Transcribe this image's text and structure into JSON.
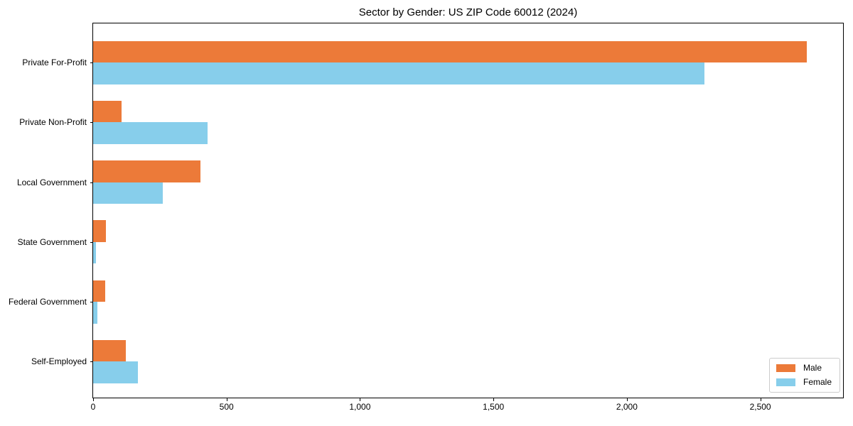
{
  "figure": {
    "background": "#ffffff"
  },
  "chart_data": {
    "type": "bar",
    "orientation": "horizontal",
    "title": "Sector by Gender: US ZIP Code 60012 (2024)",
    "categories": [
      "Private For-Profit",
      "Private Non-Profit",
      "Local Government",
      "State Government",
      "Federal Government",
      "Self-Employed"
    ],
    "series": [
      {
        "name": "Male",
        "color": "#EC7A39",
        "values": [
          2673,
          107,
          402,
          48,
          45,
          122
        ]
      },
      {
        "name": "Female",
        "color": "#87CEEB",
        "values": [
          2290,
          430,
          261,
          11,
          16,
          168
        ]
      }
    ],
    "xlim": [
      0,
      2810
    ],
    "x_ticks": [
      0,
      500,
      1000,
      1500,
      2000,
      2500
    ],
    "x_tick_labels": [
      "0",
      "500",
      "1,000",
      "1,500",
      "2,000",
      "2,500"
    ],
    "xlabel": "",
    "ylabel": "",
    "grid": false,
    "legend": {
      "position": "lower right",
      "entries": [
        "Male",
        "Female"
      ]
    }
  }
}
